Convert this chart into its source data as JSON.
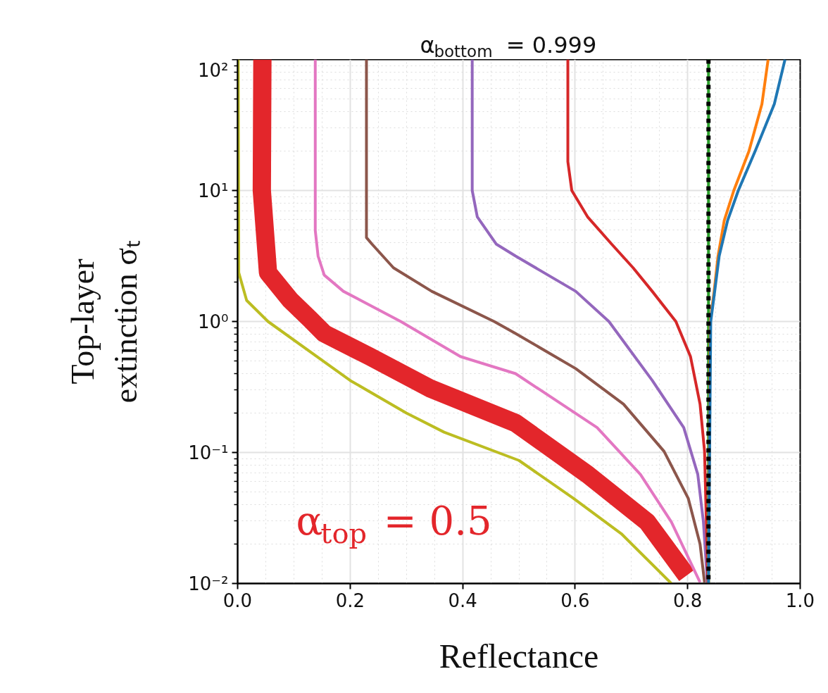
{
  "chart_data": {
    "type": "line",
    "title": "α$_{bottom}$ = 0.999",
    "xlabel": "Reflectance",
    "ylabel": "Top-layer\nextinction σₜ",
    "log": "y",
    "grid": true,
    "xlim": [
      0,
      1
    ],
    "ylim": [
      0.01,
      100
    ],
    "xticks": [
      {
        "value": 0,
        "label": "0.0"
      },
      {
        "value": 0.2,
        "label": "0.2"
      },
      {
        "value": 0.4,
        "label": "0.4"
      },
      {
        "value": 0.6,
        "label": "0.6"
      },
      {
        "value": 0.8,
        "label": "0.8"
      },
      {
        "value": 1,
        "label": "1.0"
      }
    ],
    "yticks": [
      {
        "value": 0.01,
        "label": "10⁻²"
      },
      {
        "value": 0.1,
        "label": "10⁻¹"
      },
      {
        "value": 1,
        "label": "10⁰"
      },
      {
        "value": 10,
        "label": "10¹"
      },
      {
        "value": 100,
        "label": "10²"
      }
    ],
    "line_style": "solid",
    "ref_lines": [
      {
        "axis": "x",
        "value": 0.837,
        "color": "#000000",
        "line_style": "dashed"
      }
    ],
    "series": [
      {
        "color": "#bcbd22",
        "x": [
          0.001,
          0.002,
          0.016,
          0.054,
          0.2,
          0.3,
          0.367,
          0.5,
          0.597,
          0.682,
          0.771
        ],
        "values": [
          100,
          2.36,
          1.45,
          1.0,
          0.355,
          0.2,
          0.143,
          0.087,
          0.0447,
          0.024,
          0.01
        ]
      },
      {
        "name": "α$_{top}$ = 0.5",
        "color": "#e3262b",
        "x": [
          0.044,
          0.043,
          0.054,
          0.094,
          0.128,
          0.154,
          0.235,
          0.341,
          0.494,
          0.622,
          0.728,
          0.798
        ],
        "values": [
          100,
          10,
          2.36,
          1.45,
          1.05,
          0.81,
          0.54,
          0.31,
          0.168,
          0.068,
          0.0295,
          0.0115
        ]
      },
      {
        "color": "#e377c2",
        "x": [
          0.138,
          0.138,
          0.143,
          0.154,
          0.188,
          0.29,
          0.396,
          0.494,
          0.639,
          0.716,
          0.771,
          0.822
        ],
        "values": [
          100,
          4.95,
          3.16,
          2.26,
          1.7,
          1.0,
          0.54,
          0.4,
          0.155,
          0.068,
          0.0295,
          0.0102
        ]
      },
      {
        "color": "#8c564b",
        "x": [
          0.229,
          0.229,
          0.239,
          0.277,
          0.345,
          0.456,
          0.494,
          0.601,
          0.686,
          0.758,
          0.801,
          0.822,
          0.83
        ],
        "values": [
          100,
          4.37,
          3.89,
          2.57,
          1.7,
          1.0,
          0.81,
          0.437,
          0.234,
          0.102,
          0.0447,
          0.02,
          0.0102
        ]
      },
      {
        "color": "#9467bd",
        "x": [
          0.417,
          0.417,
          0.426,
          0.46,
          0.494,
          0.601,
          0.66,
          0.737,
          0.793,
          0.818,
          0.828,
          0.835
        ],
        "values": [
          100,
          10,
          6.3,
          3.89,
          3.16,
          1.7,
          1.0,
          0.355,
          0.155,
          0.068,
          0.0295,
          0.0102
        ]
      },
      {
        "color": "#d62728",
        "x": [
          0.587,
          0.587,
          0.594,
          0.622,
          0.665,
          0.703,
          0.737,
          0.779,
          0.805,
          0.822,
          0.83,
          0.836
        ],
        "values": [
          100,
          16.6,
          10,
          6.3,
          3.89,
          2.57,
          1.7,
          1.0,
          0.54,
          0.234,
          0.102,
          0.01
        ]
      },
      {
        "color": "#2ca02c",
        "x": [
          0.837,
          0.837
        ],
        "values": [
          100,
          0.01
        ]
      },
      {
        "color": "#ff7f0e",
        "x": [
          0.943,
          0.932,
          0.909,
          0.882,
          0.865,
          0.854,
          0.847,
          0.84,
          0.837
        ],
        "values": [
          100,
          45.7,
          20,
          10,
          5.9,
          3.16,
          1.7,
          1.0,
          0.01
        ]
      },
      {
        "color": "#1f77b4",
        "x": [
          0.973,
          0.954,
          0.92,
          0.89,
          0.871,
          0.856,
          0.848,
          0.841,
          0.837
        ],
        "values": [
          100,
          45.7,
          20,
          10,
          5.9,
          3.16,
          1.7,
          1.0,
          0.01
        ]
      }
    ]
  }
}
